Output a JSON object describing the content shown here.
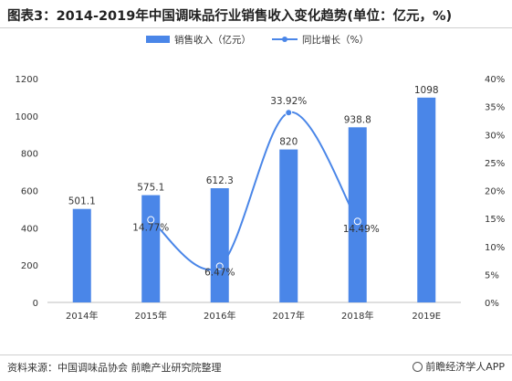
{
  "title": "图表3：2014-2019年中国调味品行业销售收入变化趋势(单位：亿元，%)",
  "source": "资料来源：中国调味品协会 前瞻产业研究院整理",
  "brand": "前瞻经济学人APP",
  "colors": {
    "bar": "#4a86e8",
    "line": "#4a86e8"
  },
  "chart_data": {
    "type": "bar",
    "categories": [
      "2014年",
      "2015年",
      "2016年",
      "2017年",
      "2018年",
      "2019E"
    ],
    "series": [
      {
        "name": "销售收入（亿元）",
        "type": "bar",
        "axis": "left",
        "values": [
          501.1,
          575.1,
          612.3,
          820,
          938.8,
          1098
        ],
        "labels": [
          "501.1",
          "575.1",
          "612.3",
          "820",
          "938.8",
          "1098"
        ]
      },
      {
        "name": "同比增长（%）",
        "type": "line",
        "axis": "right",
        "points": [
          {
            "category": "2015年",
            "value": 14.77,
            "label": "14.77%"
          },
          {
            "category": "2016年",
            "value": 6.47,
            "label": "6.47%"
          },
          {
            "category": "2017年",
            "value": 33.92,
            "label": "33.92%"
          },
          {
            "category": "2018年",
            "value": 14.49,
            "label": "14.49%"
          }
        ]
      }
    ],
    "y_left": {
      "min": 0,
      "max": 1200,
      "ticks": [
        "0",
        "200",
        "400",
        "600",
        "800",
        "1000",
        "1200"
      ]
    },
    "y_right": {
      "min": 0,
      "max": 40,
      "ticks": [
        "0%",
        "5%",
        "10%",
        "15%",
        "20%",
        "25%",
        "30%",
        "35%",
        "40%"
      ]
    },
    "legend_position": "top-center",
    "grid": false
  }
}
